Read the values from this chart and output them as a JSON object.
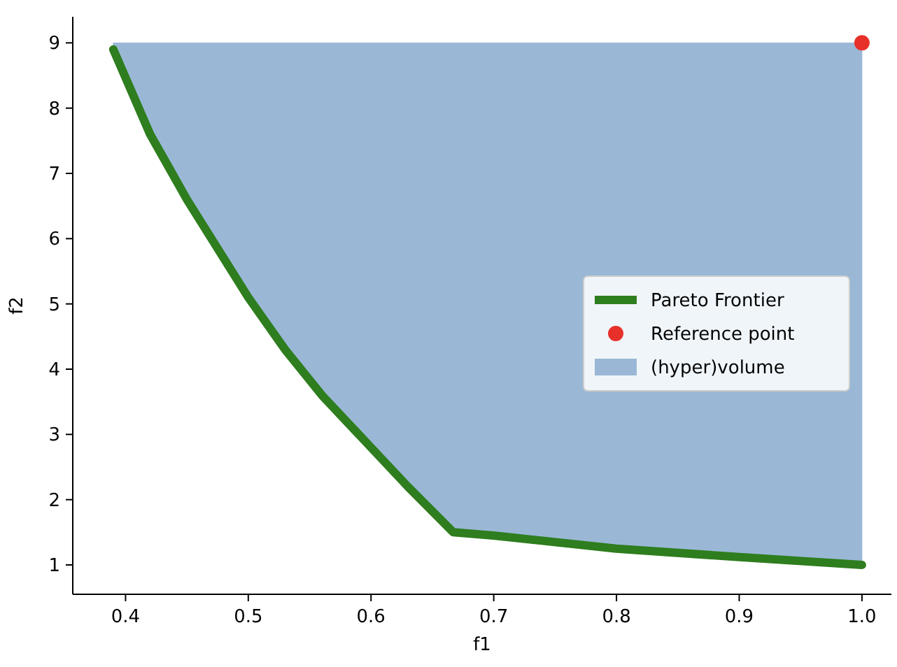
{
  "chart_data": {
    "type": "line",
    "xlabel": "f1",
    "ylabel": "f2",
    "xlim": [
      0.357,
      1.024
    ],
    "ylim": [
      0.55,
      9.4
    ],
    "xticks": [
      {
        "value": 0.4,
        "label": "0.4"
      },
      {
        "value": 0.5,
        "label": "0.5"
      },
      {
        "value": 0.6,
        "label": "0.6"
      },
      {
        "value": 0.7,
        "label": "0.7"
      },
      {
        "value": 0.8,
        "label": "0.8"
      },
      {
        "value": 0.9,
        "label": "0.9"
      },
      {
        "value": 1.0,
        "label": "1.0"
      }
    ],
    "yticks": [
      1,
      2,
      3,
      4,
      5,
      6,
      7,
      8,
      9
    ],
    "grid": false,
    "legend": "right",
    "line_style": "solid",
    "marker": "none",
    "series": [
      {
        "name": "Pareto Frontier",
        "color": "#2e7d1e",
        "x": [
          0.39,
          0.42,
          0.45,
          0.48,
          0.5,
          0.53,
          0.56,
          0.6,
          0.63,
          0.667,
          0.7,
          0.8,
          0.9,
          1.0
        ],
        "values": [
          8.9,
          7.6,
          6.6,
          5.7,
          5.1,
          4.3,
          3.6,
          2.8,
          2.2,
          1.5,
          1.45,
          1.25,
          1.12,
          1.0
        ]
      },
      {
        "name": "Reference point",
        "type": "scatter",
        "color": "#e8302a",
        "marker": "circle",
        "x": [
          1.0
        ],
        "values": [
          9
        ]
      },
      {
        "name": "(hyper)volume",
        "type": "area",
        "color": "#9ab8d6",
        "x": [
          0.39,
          0.42,
          0.45,
          0.48,
          0.5,
          0.53,
          0.56,
          0.6,
          0.63,
          0.667,
          0.7,
          0.8,
          0.9,
          1.0
        ],
        "values": [
          9,
          9,
          9,
          9,
          9,
          9,
          9,
          9,
          9,
          9,
          9,
          9,
          9,
          9
        ]
      }
    ]
  }
}
